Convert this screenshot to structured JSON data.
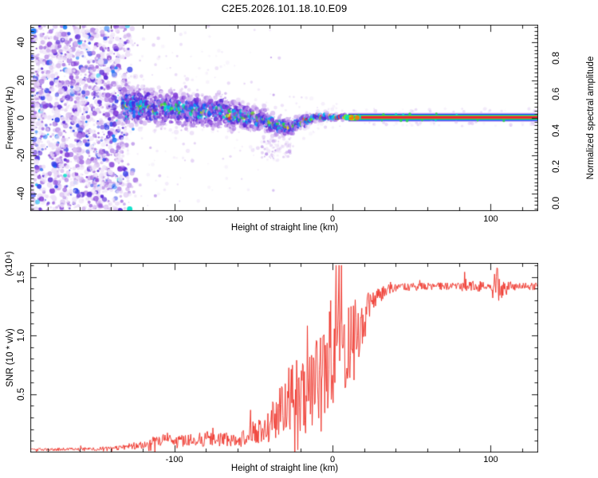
{
  "title": "C2E5.2026.101.18.10.E09",
  "colors": {
    "axis": "#1a1a1a",
    "snr_line": "#ee2e24",
    "background": "#ffffff"
  },
  "chart_data": [
    {
      "type": "heatmap",
      "name": "spectrogram",
      "xlabel": "Height of straight line (km)",
      "ylabel": "Frequency (Hz)",
      "xlim": [
        -191,
        130
      ],
      "ylim": [
        -49.3,
        49.3
      ],
      "x_ticks": [
        {
          "v": -100,
          "label": "-100"
        },
        {
          "v": 0,
          "label": "0"
        },
        {
          "v": 100,
          "label": "100"
        }
      ],
      "x_minor_step": 20,
      "y_ticks": [
        {
          "v": 40,
          "label": "40"
        },
        {
          "v": 20,
          "label": "20"
        },
        {
          "v": 0,
          "label": "0"
        },
        {
          "v": -20,
          "label": "-20"
        },
        {
          "v": -40,
          "label": "-40"
        }
      ],
      "y_minor_step": 2,
      "colorbar": {
        "label": "Normalized spectral amplitude",
        "ticks": [
          {
            "v": 0.0,
            "label": "0.0"
          },
          {
            "v": 0.2,
            "label": "0.2"
          },
          {
            "v": 0.4,
            "label": "0.4"
          },
          {
            "v": 0.6,
            "label": "0.6"
          },
          {
            "v": 0.8,
            "label": "0.8"
          }
        ],
        "range": [
          0,
          1
        ]
      },
      "noise_region_km": [
        -191,
        -133
      ],
      "noise_fade_km": -124,
      "signal_band": [
        [
          -133,
          7,
          13,
          0.8
        ],
        [
          -120,
          6,
          13,
          0.8
        ],
        [
          -110,
          5,
          12,
          0.82
        ],
        [
          -100,
          5,
          12,
          0.82
        ],
        [
          -90,
          4,
          12,
          0.8
        ],
        [
          -80,
          3,
          11,
          0.8
        ],
        [
          -70,
          3,
          11,
          0.82
        ],
        [
          -60,
          1,
          10,
          0.8
        ],
        [
          -50,
          0,
          9,
          0.8
        ],
        [
          -42,
          -2,
          8,
          0.8
        ],
        [
          -35,
          -4,
          7,
          0.83
        ],
        [
          -28,
          -5,
          6,
          0.82
        ],
        [
          -22,
          -3,
          5,
          0.86
        ],
        [
          -16,
          -1,
          4,
          0.88
        ],
        [
          -10,
          0.5,
          3,
          0.92
        ],
        [
          -4,
          0.5,
          2.6,
          0.94
        ],
        [
          2,
          0.3,
          2.3,
          0.96
        ],
        [
          9,
          0.3,
          2.0,
          0.97
        ]
      ],
      "carrier_line": {
        "start_km": 10,
        "end_km": 130,
        "center_hz": 0.3
      }
    },
    {
      "type": "line",
      "name": "snr",
      "xlabel": "Height of straight line (km)",
      "ylabel": "SNR (10 * v/v)",
      "scale_note": "(x10⁴)",
      "xlim": [
        -191,
        130
      ],
      "ylim": [
        0,
        1.62
      ],
      "x_ticks": [
        {
          "v": -100,
          "label": "-100"
        },
        {
          "v": 0,
          "label": "0"
        },
        {
          "v": 100,
          "label": "100"
        }
      ],
      "x_minor_step": 20,
      "y_ticks": [
        {
          "v": 0.5,
          "label": "0.5"
        },
        {
          "v": 1.0,
          "label": "1.0"
        },
        {
          "v": 1.5,
          "label": "1.5"
        }
      ],
      "y_minor_step": 0.1,
      "envelope": [
        [
          -191,
          0.025,
          0.012
        ],
        [
          -160,
          0.028,
          0.015
        ],
        [
          -140,
          0.03,
          0.02
        ],
        [
          -128,
          0.05,
          0.03
        ],
        [
          -115,
          0.09,
          0.05
        ],
        [
          -105,
          0.11,
          0.06
        ],
        [
          -95,
          0.1,
          0.05
        ],
        [
          -85,
          0.11,
          0.06
        ],
        [
          -75,
          0.12,
          0.07
        ],
        [
          -65,
          0.11,
          0.06
        ],
        [
          -58,
          0.13,
          0.07
        ],
        [
          -52,
          0.18,
          0.1
        ],
        [
          -47,
          0.16,
          0.09
        ],
        [
          -42,
          0.22,
          0.14
        ],
        [
          -37,
          0.28,
          0.18
        ],
        [
          -32,
          0.4,
          0.28
        ],
        [
          -27,
          0.45,
          0.3
        ],
        [
          -22,
          0.5,
          0.33
        ],
        [
          -17,
          0.48,
          0.32
        ],
        [
          -12,
          0.6,
          0.4
        ],
        [
          -7,
          0.75,
          0.46
        ],
        [
          -2,
          0.85,
          0.5
        ],
        [
          3,
          0.9,
          0.45
        ],
        [
          8,
          0.95,
          0.4
        ],
        [
          13,
          1.0,
          0.35
        ],
        [
          18,
          1.1,
          0.25
        ],
        [
          23,
          1.22,
          0.15
        ],
        [
          28,
          1.32,
          0.08
        ],
        [
          33,
          1.38,
          0.05
        ],
        [
          40,
          1.41,
          0.035
        ],
        [
          60,
          1.42,
          0.03
        ],
        [
          80,
          1.42,
          0.035
        ],
        [
          85,
          1.43,
          0.06
        ],
        [
          88,
          1.42,
          0.035
        ],
        [
          91,
          1.43,
          0.07
        ],
        [
          94,
          1.42,
          0.035
        ],
        [
          100,
          1.43,
          0.04
        ],
        [
          104,
          1.45,
          0.18
        ],
        [
          107,
          1.4,
          0.1
        ],
        [
          112,
          1.42,
          0.04
        ],
        [
          130,
          1.42,
          0.035
        ]
      ]
    }
  ]
}
